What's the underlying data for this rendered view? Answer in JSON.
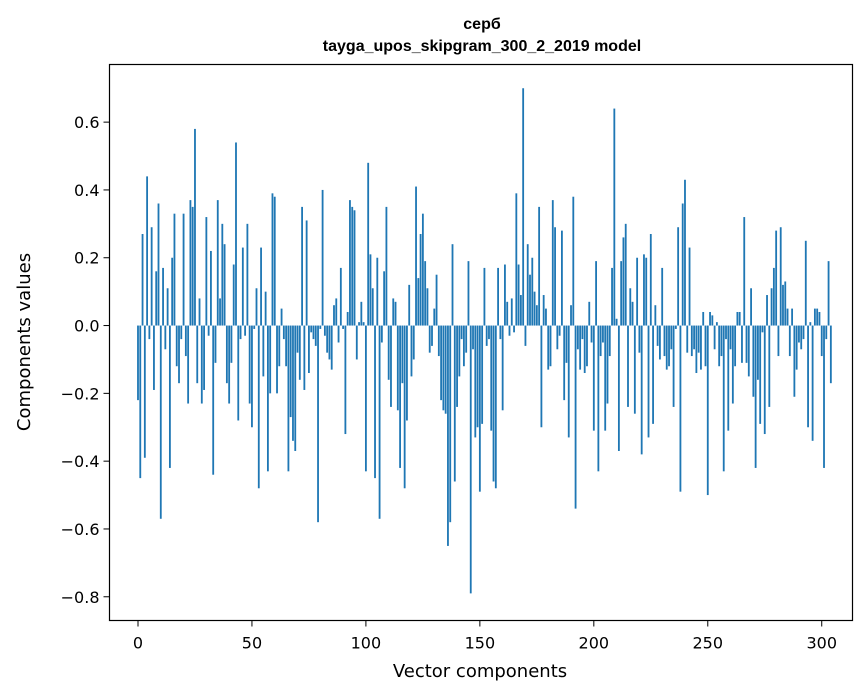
{
  "chart_data": {
    "type": "bar",
    "title": "серб",
    "subtitle": "tayga_upos_skipgram_300_2_2019 model",
    "xlabel": "Vector components",
    "ylabel": "Components values",
    "xlim": [
      -12.5,
      313.5
    ],
    "ylim": [
      -0.87,
      0.77
    ],
    "xticks": [
      0,
      50,
      100,
      150,
      200,
      250,
      300
    ],
    "yticks": [
      -0.8,
      -0.6,
      -0.4,
      -0.2,
      0.0,
      0.2,
      0.4,
      0.6
    ],
    "ytick_labels": [
      "−0.8",
      "−0.6",
      "−0.4",
      "−0.2",
      "0.0",
      "0.2",
      "0.4",
      "0.6"
    ],
    "bar_color": "#1f77b4",
    "grid": false,
    "values": [
      -0.22,
      -0.45,
      0.27,
      -0.39,
      0.44,
      -0.04,
      0.29,
      -0.19,
      0.16,
      0.36,
      -0.57,
      0.17,
      -0.07,
      0.11,
      -0.42,
      0.2,
      0.33,
      -0.12,
      -0.17,
      -0.04,
      0.33,
      -0.09,
      -0.23,
      0.37,
      0.35,
      0.58,
      -0.17,
      0.08,
      -0.23,
      -0.19,
      0.32,
      -0.03,
      0.22,
      -0.44,
      -0.11,
      0.37,
      0.08,
      0.3,
      0.24,
      -0.17,
      -0.23,
      -0.11,
      0.18,
      0.54,
      -0.28,
      -0.04,
      0.23,
      -0.03,
      0.3,
      -0.23,
      -0.3,
      -0.01,
      0.11,
      -0.48,
      0.23,
      -0.15,
      0.1,
      -0.43,
      -0.2,
      0.39,
      0.38,
      -0.2,
      -0.12,
      0.05,
      -0.04,
      -0.12,
      -0.43,
      -0.27,
      -0.34,
      -0.37,
      -0.08,
      -0.16,
      0.35,
      -0.19,
      0.31,
      -0.14,
      -0.02,
      -0.04,
      -0.06,
      -0.58,
      -0.01,
      0.4,
      -0.03,
      -0.08,
      -0.1,
      -0.13,
      0.06,
      0.08,
      -0.05,
      0.17,
      -0.01,
      -0.32,
      0.04,
      0.37,
      0.35,
      0.34,
      -0.1,
      0.01,
      0.07,
      0.01,
      -0.43,
      0.48,
      0.21,
      0.11,
      -0.45,
      0.2,
      -0.57,
      -0.05,
      0.16,
      0.35,
      -0.16,
      -0.24,
      0.08,
      0.07,
      -0.25,
      -0.42,
      -0.17,
      -0.48,
      -0.28,
      0.12,
      -0.15,
      -0.1,
      0.41,
      0.14,
      0.27,
      0.33,
      0.19,
      0.11,
      -0.08,
      -0.06,
      0.05,
      0.15,
      -0.09,
      -0.22,
      -0.25,
      -0.26,
      -0.65,
      -0.58,
      0.24,
      -0.46,
      -0.24,
      -0.15,
      -0.04,
      -0.12,
      -0.08,
      0.19,
      -0.79,
      -0.07,
      -0.33,
      -0.3,
      -0.49,
      -0.29,
      0.17,
      -0.06,
      -0.04,
      -0.31,
      -0.46,
      -0.48,
      0.17,
      -0.04,
      -0.25,
      0.18,
      0.07,
      -0.03,
      0.08,
      -0.02,
      0.39,
      0.18,
      0.09,
      0.7,
      -0.06,
      0.24,
      0.15,
      0.2,
      0.1,
      0.06,
      0.35,
      -0.3,
      0.09,
      0.05,
      -0.13,
      -0.12,
      0.37,
      0.29,
      -0.07,
      -0.03,
      0.28,
      -0.22,
      -0.11,
      -0.33,
      0.06,
      0.38,
      -0.54,
      -0.07,
      -0.13,
      -0.04,
      -0.14,
      -0.12,
      0.07,
      -0.05,
      -0.31,
      0.19,
      -0.43,
      -0.09,
      -0.05,
      -0.31,
      -0.23,
      -0.09,
      0.17,
      0.64,
      0.02,
      -0.37,
      0.19,
      0.26,
      0.3,
      -0.24,
      0.11,
      0.07,
      -0.26,
      0.2,
      -0.08,
      -0.38,
      0.21,
      0.2,
      -0.33,
      0.27,
      -0.29,
      0.06,
      -0.06,
      -0.1,
      0.17,
      -0.09,
      -0.13,
      -0.12,
      -0.07,
      -0.24,
      -0.01,
      0.29,
      -0.49,
      0.36,
      0.43,
      -0.08,
      0.23,
      -0.09,
      -0.07,
      -0.14,
      -0.08,
      -0.13,
      0.04,
      -0.12,
      -0.5,
      0.04,
      0.03,
      -0.07,
      0.01,
      -0.12,
      -0.09,
      -0.43,
      -0.04,
      -0.31,
      -0.07,
      -0.23,
      -0.12,
      0.04,
      0.04,
      -0.11,
      0.32,
      -0.11,
      -0.15,
      0.11,
      -0.21,
      -0.42,
      -0.16,
      -0.29,
      -0.02,
      -0.32,
      0.09,
      -0.24,
      0.11,
      0.17,
      0.28,
      -0.09,
      0.29,
      0.12,
      0.13,
      0.05,
      -0.09,
      0.05,
      -0.21,
      -0.13,
      -0.05,
      -0.07,
      -0.04,
      0.25,
      -0.3,
      0.01,
      -0.34,
      0.05,
      0.05,
      0.04,
      -0.09,
      -0.42,
      -0.04,
      0.19,
      -0.17
    ]
  }
}
